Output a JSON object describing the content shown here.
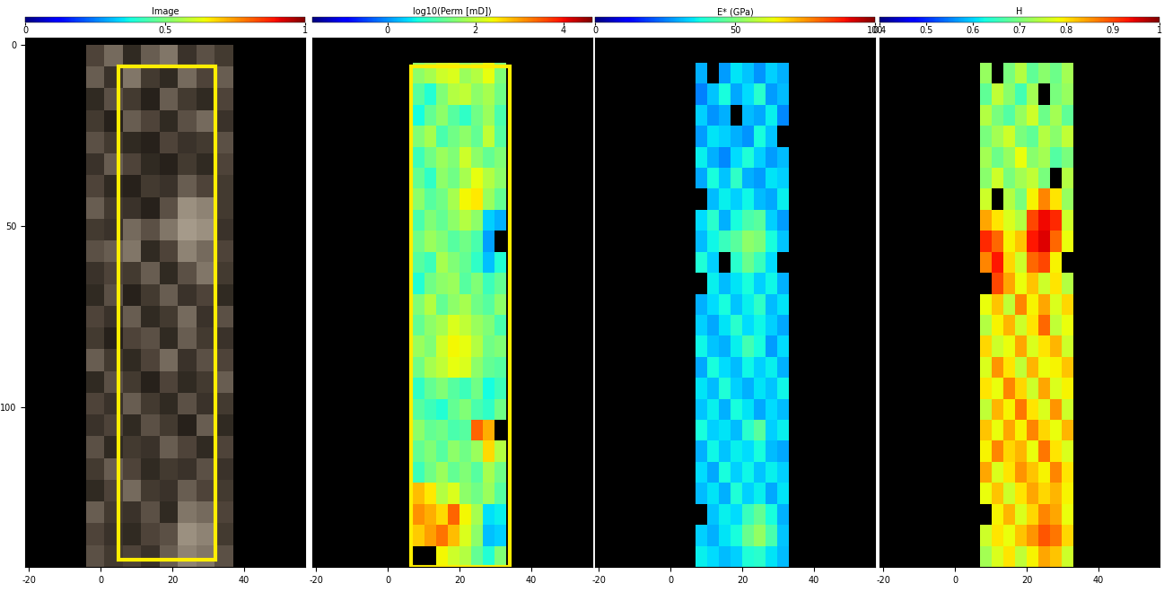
{
  "chart_data": [
    {
      "type": "heatmap",
      "title": "Image",
      "xlim": [
        -21,
        57
      ],
      "ylim": [
        144,
        -2
      ],
      "xticks": [
        -20,
        0,
        20,
        40
      ],
      "yticks": [
        0,
        50,
        100
      ],
      "cell_x": [
        -4,
        37
      ],
      "cell_y": [
        0,
        144
      ],
      "box_x": [
        5,
        32
      ],
      "box_y": [
        6,
        142
      ],
      "colorbar_range": [
        0,
        1
      ],
      "colorbar_ticks": [
        0,
        0.5,
        1
      ],
      "cells": [
        [
          0.35,
          0.5,
          0.2,
          0.45,
          0.55,
          0.25,
          0.4,
          0.3
        ],
        [
          0.45,
          0.25,
          0.55,
          0.3,
          0.2,
          0.5,
          0.35,
          0.45
        ],
        [
          0.2,
          0.4,
          0.3,
          0.15,
          0.45,
          0.3,
          0.2,
          0.35
        ],
        [
          0.3,
          0.15,
          0.45,
          0.35,
          0.2,
          0.4,
          0.5,
          0.25
        ],
        [
          0.4,
          0.3,
          0.2,
          0.15,
          0.35,
          0.25,
          0.3,
          0.4
        ],
        [
          0.25,
          0.45,
          0.35,
          0.2,
          0.15,
          0.3,
          0.2,
          0.35
        ],
        [
          0.35,
          0.2,
          0.15,
          0.3,
          0.25,
          0.45,
          0.35,
          0.3
        ],
        [
          0.45,
          0.3,
          0.25,
          0.15,
          0.4,
          0.65,
          0.6,
          0.3
        ],
        [
          0.3,
          0.25,
          0.5,
          0.4,
          0.55,
          0.7,
          0.65,
          0.25
        ],
        [
          0.4,
          0.45,
          0.55,
          0.2,
          0.35,
          0.6,
          0.5,
          0.35
        ],
        [
          0.25,
          0.35,
          0.3,
          0.45,
          0.2,
          0.4,
          0.55,
          0.3
        ],
        [
          0.2,
          0.4,
          0.15,
          0.3,
          0.45,
          0.25,
          0.35,
          0.2
        ],
        [
          0.35,
          0.25,
          0.45,
          0.2,
          0.3,
          0.5,
          0.25,
          0.4
        ],
        [
          0.3,
          0.15,
          0.35,
          0.4,
          0.2,
          0.45,
          0.3,
          0.25
        ],
        [
          0.45,
          0.3,
          0.2,
          0.35,
          0.5,
          0.25,
          0.4,
          0.35
        ],
        [
          0.2,
          0.4,
          0.3,
          0.15,
          0.35,
          0.2,
          0.3,
          0.45
        ],
        [
          0.35,
          0.25,
          0.45,
          0.3,
          0.2,
          0.4,
          0.25,
          0.3
        ],
        [
          0.25,
          0.35,
          0.2,
          0.4,
          0.3,
          0.15,
          0.45,
          0.2
        ],
        [
          0.4,
          0.2,
          0.3,
          0.25,
          0.45,
          0.35,
          0.2,
          0.35
        ],
        [
          0.3,
          0.45,
          0.35,
          0.2,
          0.3,
          0.25,
          0.4,
          0.25
        ],
        [
          0.2,
          0.35,
          0.5,
          0.3,
          0.25,
          0.45,
          0.35,
          0.3
        ],
        [
          0.45,
          0.3,
          0.25,
          0.4,
          0.2,
          0.55,
          0.5,
          0.35
        ],
        [
          0.35,
          0.25,
          0.2,
          0.35,
          0.4,
          0.65,
          0.6,
          0.3
        ],
        [
          0.4,
          0.3,
          0.35,
          0.25,
          0.45,
          0.6,
          0.55,
          0.4
        ]
      ]
    },
    {
      "type": "heatmap",
      "title": "log10(Perm [mD])",
      "tick_labels": "x",
      "xlim": [
        -21,
        57
      ],
      "ylim": [
        144,
        -2
      ],
      "xticks": [
        -20,
        0,
        20,
        40
      ],
      "cell_x": [
        7,
        33
      ],
      "cell_y": [
        5,
        144
      ],
      "box_x": [
        6.5,
        34
      ],
      "box_y": [
        6,
        144
      ],
      "colorbar_range": [
        -1.7,
        4.65
      ],
      "colorbar_ticks": [
        0,
        2,
        4
      ],
      "cells": [
        [
          1.6,
          1.8,
          2.1,
          2.2,
          1.7,
          1.9,
          2.3,
          1.5
        ],
        [
          1.2,
          0.8,
          1.5,
          1.9,
          2.0,
          1.6,
          1.8,
          1.4
        ],
        [
          0.7,
          1.3,
          1.6,
          1.2,
          0.9,
          1.4,
          1.7,
          1.1
        ],
        [
          1.5,
          1.8,
          1.1,
          1.4,
          1.6,
          1.3,
          2.0,
          1.2
        ],
        [
          1.0,
          1.4,
          1.7,
          1.5,
          2.1,
          1.6,
          1.3,
          1.5
        ],
        [
          1.3,
          0.9,
          1.6,
          1.4,
          1.8,
          2.3,
          1.9,
          1.6
        ],
        [
          1.6,
          1.2,
          1.4,
          1.8,
          2.4,
          2.5,
          1.7,
          1.3
        ],
        [
          1.1,
          1.5,
          1.3,
          1.6,
          1.9,
          1.6,
          0.4,
          0.2
        ],
        [
          1.4,
          1.7,
          1.5,
          1.2,
          1.4,
          1.1,
          0.1,
          null
        ],
        [
          1.2,
          1.0,
          1.8,
          1.5,
          1.3,
          0.9,
          0.3,
          0.8
        ],
        [
          0.8,
          1.4,
          1.6,
          1.7,
          1.2,
          1.5,
          1.0,
          1.3
        ],
        [
          1.5,
          1.9,
          1.3,
          1.6,
          1.8,
          1.4,
          1.2,
          1.6
        ],
        [
          1.3,
          1.6,
          1.8,
          2.2,
          2.0,
          1.7,
          1.5,
          1.1
        ],
        [
          1.7,
          1.5,
          2.1,
          2.4,
          2.3,
          1.9,
          1.4,
          1.5
        ],
        [
          1.4,
          1.8,
          2.0,
          2.3,
          2.2,
          1.6,
          1.3,
          1.2
        ],
        [
          0.9,
          1.3,
          1.5,
          1.2,
          1.0,
          1.4,
          0.7,
          1.0
        ],
        [
          1.2,
          1.0,
          0.8,
          1.3,
          1.5,
          1.1,
          0.9,
          1.4
        ],
        [
          1.6,
          1.3,
          1.4,
          1.1,
          1.2,
          3.4,
          2.9,
          null
        ],
        [
          1.3,
          1.5,
          1.2,
          1.6,
          1.4,
          1.7,
          2.6,
          1.9
        ],
        [
          1.0,
          1.4,
          1.7,
          1.3,
          1.5,
          1.2,
          1.8,
          1.4
        ],
        [
          2.8,
          2.5,
          1.9,
          2.2,
          1.6,
          1.4,
          1.7,
          1.2
        ],
        [
          3.1,
          2.9,
          2.6,
          3.4,
          2.4,
          1.8,
          0.5,
          0.6
        ],
        [
          2.7,
          3.0,
          3.3,
          2.8,
          2.2,
          1.6,
          0.3,
          0.4
        ],
        [
          null,
          null,
          2.4,
          2.1,
          1.9,
          1.3,
          0.8,
          1.5
        ]
      ]
    },
    {
      "type": "heatmap",
      "title": "E* (GPa)",
      "tick_labels": "x",
      "xlim": [
        -21,
        57
      ],
      "ylim": [
        144,
        -2
      ],
      "xticks": [
        -20,
        0,
        20,
        40
      ],
      "cell_x": [
        7,
        33
      ],
      "cell_y": [
        5,
        144
      ],
      "colorbar_range": [
        0,
        100
      ],
      "colorbar_ticks": [
        0,
        50,
        100
      ],
      "cells": [
        [
          30,
          null,
          28,
          35,
          32,
          27,
          33,
          30
        ],
        [
          25,
          32,
          38,
          29,
          34,
          40,
          28,
          31
        ],
        [
          33,
          27,
          30,
          null,
          31,
          29,
          36,
          26
        ],
        [
          28,
          35,
          33,
          30,
          27,
          38,
          32,
          null
        ],
        [
          36,
          30,
          26,
          34,
          39,
          33,
          28,
          31
        ],
        [
          29,
          38,
          32,
          41,
          30,
          28,
          35,
          33
        ],
        [
          null,
          31,
          36,
          33,
          37,
          31,
          29,
          36
        ],
        [
          34,
          40,
          30,
          38,
          44,
          46,
          33,
          28
        ],
        [
          31,
          37,
          42,
          46,
          52,
          50,
          38,
          32
        ],
        [
          39,
          33,
          null,
          40,
          48,
          42,
          34,
          null
        ],
        [
          null,
          36,
          31,
          35,
          38,
          33,
          37,
          30
        ],
        [
          30,
          34,
          38,
          32,
          36,
          41,
          31,
          35
        ],
        [
          33,
          29,
          35,
          40,
          34,
          37,
          33,
          29
        ],
        [
          37,
          32,
          30,
          36,
          43,
          38,
          28,
          34
        ],
        [
          29,
          38,
          34,
          31,
          37,
          33,
          36,
          30
        ],
        [
          35,
          31,
          39,
          33,
          30,
          35,
          32,
          37
        ],
        [
          32,
          36,
          30,
          38,
          35,
          29,
          34,
          31
        ],
        [
          38,
          33,
          35,
          31,
          40,
          46,
          33,
          36
        ],
        [
          30,
          37,
          32,
          36,
          34,
          38,
          31,
          29
        ],
        [
          34,
          29,
          38,
          33,
          37,
          32,
          36,
          33
        ],
        [
          31,
          35,
          30,
          39,
          33,
          36,
          29,
          35
        ],
        [
          null,
          32,
          36,
          34,
          42,
          47,
          38,
          30
        ],
        [
          33,
          30,
          35,
          38,
          48,
          53,
          44,
          32
        ],
        [
          36,
          34,
          31,
          33,
          39,
          40,
          35,
          31
        ]
      ]
    },
    {
      "type": "heatmap",
      "title": "H",
      "tick_labels": "x",
      "xlim": [
        -21,
        57
      ],
      "ylim": [
        144,
        -2
      ],
      "xticks": [
        -20,
        0,
        20,
        40
      ],
      "cell_x": [
        7,
        33
      ],
      "cell_y": [
        5,
        144
      ],
      "colorbar_range": [
        0.4,
        1
      ],
      "colorbar_ticks": [
        0.4,
        0.5,
        0.6,
        0.7,
        0.8,
        0.9,
        1
      ],
      "cells": [
        [
          0.72,
          null,
          0.7,
          0.74,
          0.68,
          0.71,
          0.69,
          0.73
        ],
        [
          0.68,
          0.75,
          0.71,
          0.66,
          0.73,
          null,
          0.7,
          0.72
        ],
        [
          0.74,
          0.7,
          0.67,
          0.72,
          0.76,
          0.69,
          0.73,
          0.68
        ],
        [
          0.7,
          0.73,
          0.76,
          0.7,
          0.68,
          0.74,
          0.71,
          0.75
        ],
        [
          0.73,
          0.69,
          0.72,
          0.78,
          0.71,
          0.73,
          0.67,
          0.7
        ],
        [
          0.71,
          0.76,
          0.7,
          0.73,
          0.75,
          0.7,
          null,
          0.74
        ],
        [
          0.76,
          null,
          0.74,
          0.7,
          0.79,
          0.86,
          0.8,
          0.72
        ],
        [
          0.84,
          0.8,
          0.77,
          0.74,
          0.9,
          0.94,
          0.92,
          0.76
        ],
        [
          0.92,
          0.88,
          0.79,
          0.82,
          0.93,
          0.95,
          0.88,
          0.78
        ],
        [
          0.86,
          0.93,
          0.81,
          0.76,
          0.88,
          0.9,
          0.79,
          null
        ],
        [
          null,
          0.9,
          0.84,
          0.78,
          0.82,
          0.76,
          0.8,
          0.74
        ],
        [
          0.78,
          0.82,
          0.75,
          0.86,
          0.79,
          0.84,
          0.77,
          0.81
        ],
        [
          0.74,
          0.79,
          0.83,
          0.76,
          0.8,
          0.88,
          0.75,
          0.78
        ],
        [
          0.81,
          0.76,
          0.78,
          0.84,
          0.77,
          0.8,
          0.83,
          0.76
        ],
        [
          0.77,
          0.85,
          0.8,
          0.75,
          0.83,
          0.78,
          0.79,
          0.82
        ],
        [
          0.8,
          0.78,
          0.86,
          0.81,
          0.76,
          0.84,
          0.77,
          0.79
        ],
        [
          0.75,
          0.83,
          0.79,
          0.87,
          0.8,
          0.77,
          0.85,
          0.76
        ],
        [
          0.82,
          0.78,
          0.84,
          0.79,
          0.86,
          0.81,
          0.78,
          0.83
        ],
        [
          0.79,
          0.86,
          0.81,
          0.83,
          0.78,
          0.87,
          0.8,
          0.77
        ],
        [
          0.84,
          0.77,
          0.8,
          0.85,
          0.82,
          0.79,
          0.86,
          0.8
        ],
        [
          0.78,
          0.82,
          0.76,
          0.8,
          0.84,
          0.81,
          0.83,
          0.79
        ],
        [
          null,
          0.79,
          0.83,
          0.77,
          0.81,
          0.86,
          0.84,
          0.78
        ],
        [
          0.76,
          0.8,
          0.78,
          0.82,
          0.85,
          0.89,
          0.87,
          0.81
        ],
        [
          0.73,
          0.77,
          0.8,
          0.75,
          0.79,
          0.84,
          0.82,
          0.76
        ]
      ]
    }
  ]
}
